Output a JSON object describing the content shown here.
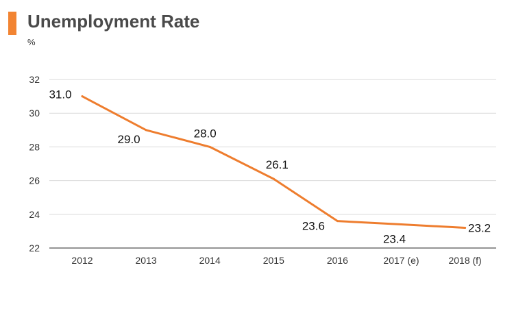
{
  "header": {
    "title": "Unemployment Rate",
    "unit": "%"
  },
  "colors": {
    "accent": "#f28432",
    "line": "#ee7d2e",
    "grid": "#d9d9d9",
    "axis": "#555555"
  },
  "chart_data": {
    "type": "line",
    "title": "Unemployment Rate",
    "xlabel": "",
    "ylabel": "%",
    "categories": [
      "2012",
      "2013",
      "2014",
      "2015",
      "2016",
      "2017 (e)",
      "2018 (f)"
    ],
    "series": [
      {
        "values": [
          31.0,
          29.0,
          28.0,
          26.1,
          23.6,
          23.4,
          23.2
        ],
        "labels": [
          "31.0",
          "29.0",
          "28.0",
          "26.1",
          "23.6",
          "23.4",
          "23.2"
        ]
      }
    ],
    "ylim": [
      22,
      32
    ],
    "yticks": [
      "22",
      "24",
      "26",
      "28",
      "30",
      "32"
    ],
    "grid": true,
    "legend": "none"
  }
}
